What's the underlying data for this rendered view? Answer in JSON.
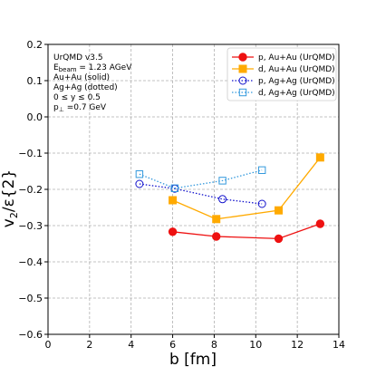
{
  "chart_data": {
    "type": "line",
    "xlabel": "b [fm]",
    "ylabel_main": "v",
    "ylabel_sub": "2",
    "ylabel_rest": "/ε{2}",
    "xlim": [
      0,
      14
    ],
    "ylim": [
      -0.6,
      0.2
    ],
    "x_ticks": [
      "0",
      "2",
      "4",
      "6",
      "8",
      "10",
      "12",
      "14"
    ],
    "y_ticks": [
      "0.2",
      "0.1",
      "0.0",
      "−0.1",
      "−0.2",
      "−0.3",
      "−0.4",
      "−0.5",
      "−0.6"
    ],
    "grid": true,
    "legend_position": "top-right",
    "annotation": {
      "line1": "UrQMD v3.5",
      "line2_main": "E",
      "line2_sub": "beam",
      "line2_rest": " = 1.23 AGeV",
      "line3": "Au+Au (solid)",
      "line4": "Ag+Ag (dotted)",
      "line5": "0 ≤ y ≤ 0.5",
      "line6_main": "p",
      "line6_sub": "⊥",
      "line6_rest": " =0.7 GeV"
    },
    "series": [
      {
        "name": "p, Au+Au (UrQMD)",
        "color": "#ee1111",
        "marker": "circle-filled",
        "style": "solid",
        "x": [
          6.0,
          8.1,
          11.1,
          13.1
        ],
        "y": [
          -0.317,
          -0.33,
          -0.336,
          -0.295
        ]
      },
      {
        "name": "d, Au+Au (UrQMD)",
        "color": "#ffaa00",
        "marker": "square-filled",
        "style": "solid",
        "x": [
          6.0,
          8.1,
          11.1,
          13.1
        ],
        "y": [
          -0.23,
          -0.282,
          -0.258,
          -0.112
        ]
      },
      {
        "name": "p, Ag+Ag (UrQMD)",
        "color": "#1111cc",
        "marker": "circle-open",
        "style": "dotted",
        "x": [
          4.4,
          6.1,
          8.4,
          10.3
        ],
        "y": [
          -0.185,
          -0.198,
          -0.227,
          -0.24
        ]
      },
      {
        "name": "d, Ag+Ag (UrQMD)",
        "color": "#3399dd",
        "marker": "square-open",
        "style": "dotted",
        "x": [
          4.4,
          6.1,
          8.4,
          10.3
        ],
        "y": [
          -0.158,
          -0.197,
          -0.176,
          -0.147
        ]
      }
    ]
  }
}
